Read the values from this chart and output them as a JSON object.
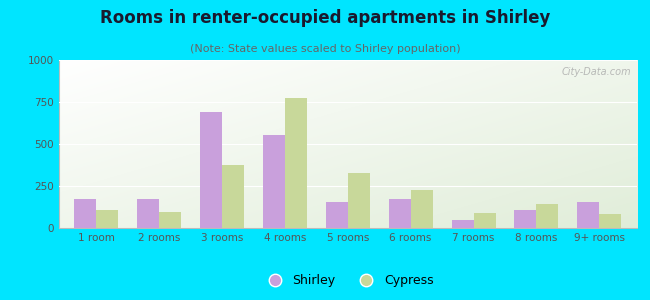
{
  "title": "Rooms in renter-occupied apartments in Shirley",
  "subtitle": "(Note: State values scaled to Shirley population)",
  "categories": [
    "1 room",
    "2 rooms",
    "3 rooms",
    "4 rooms",
    "5 rooms",
    "6 rooms",
    "7 rooms",
    "8 rooms",
    "9+ rooms"
  ],
  "shirley": [
    175,
    175,
    690,
    555,
    155,
    175,
    50,
    105,
    155
  ],
  "cypress": [
    105,
    95,
    375,
    775,
    330,
    225,
    90,
    140,
    85
  ],
  "shirley_color": "#c9a0dc",
  "cypress_color": "#c8d89a",
  "bg_outer": "#00e5ff",
  "ylim": [
    0,
    1000
  ],
  "yticks": [
    0,
    250,
    500,
    750,
    1000
  ],
  "bar_width": 0.35,
  "title_fontsize": 12,
  "subtitle_fontsize": 8,
  "tick_fontsize": 7.5,
  "legend_fontsize": 9
}
